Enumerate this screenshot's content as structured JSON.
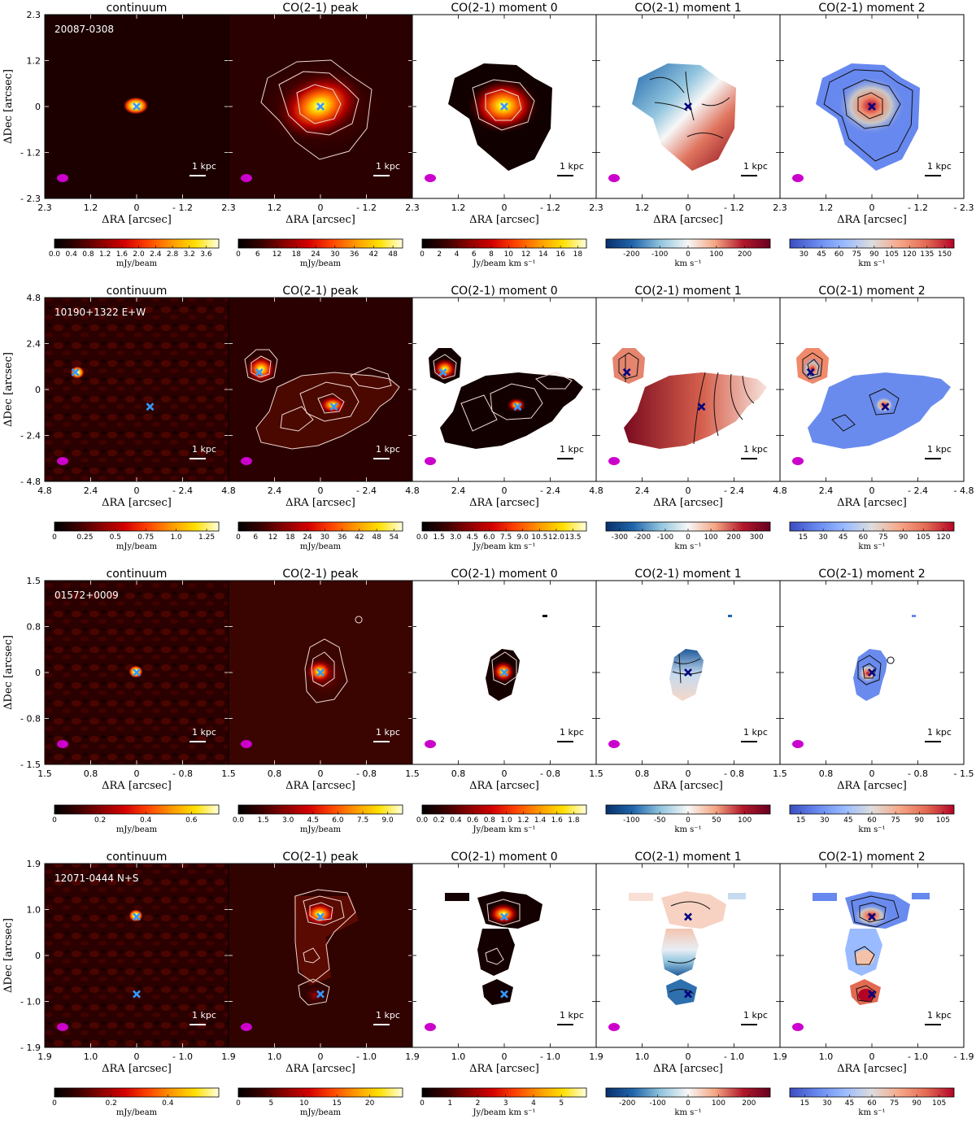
{
  "figure": {
    "panel_titles": [
      "continuum",
      "CO(2-1) peak",
      "CO(2-1) moment 0",
      "CO(2-1) moment 1",
      "CO(2-1) moment 2"
    ],
    "xlabel": "ΔRA [arcsec]",
    "ylabel": "ΔDec [arcsec]",
    "scalebar_label": "1 kpc"
  },
  "colors": {
    "hot": [
      "#000000",
      "#3a0000",
      "#8b0000",
      "#d40000",
      "#ff4500",
      "#ff9900",
      "#ffe000",
      "#ffffe0"
    ],
    "vel": [
      "#08306b",
      "#2166ac",
      "#92c5de",
      "#f7f7f7",
      "#f4a582",
      "#b2182b",
      "#67001f"
    ],
    "disp": [
      "#3b4cc0",
      "#6788ee",
      "#9abbff",
      "#dddddd",
      "#f7a889",
      "#e26952",
      "#b40426"
    ],
    "beam": "#cc00cc",
    "cross_light": "#3399ff",
    "cross_dark": "#000080"
  },
  "chart_data": [
    {
      "type": "heatmap",
      "galaxy": "20087-0308",
      "axis_ticks": [
        "2.3",
        "1.2",
        "0",
        "- 1.2",
        "- 2.3"
      ],
      "lim": [
        2.3,
        -2.3
      ],
      "colorbars": [
        {
          "label": "mJy/beam",
          "ticks": [
            "0.0",
            "0.4",
            "0.8",
            "1.2",
            "1.6",
            "2.0",
            "2.4",
            "2.8",
            "3.2",
            "3.6"
          ],
          "range": [
            0,
            3.9
          ]
        },
        {
          "label": "mJy/beam",
          "ticks": [
            "0",
            "6",
            "12",
            "18",
            "24",
            "30",
            "36",
            "42",
            "48"
          ],
          "range": [
            0,
            51
          ]
        },
        {
          "label": "Jy/beam km s⁻¹",
          "ticks": [
            "0",
            "2",
            "4",
            "6",
            "8",
            "10",
            "12",
            "14",
            "16",
            "18"
          ],
          "range": [
            0,
            19
          ]
        },
        {
          "label": "km s⁻¹",
          "ticks": [
            "-200",
            "-100",
            "0",
            "100",
            "200"
          ],
          "range": [
            -290,
            290
          ]
        },
        {
          "label": "km s⁻¹",
          "ticks": [
            "30",
            "45",
            "60",
            "75",
            "90",
            "105",
            "120",
            "135",
            "150"
          ],
          "range": [
            18,
            158
          ]
        }
      ],
      "sources": [
        {
          "ra": 0,
          "dec": 0
        }
      ],
      "extra_crosses": []
    },
    {
      "type": "heatmap",
      "galaxy": "10190+1322 E+W",
      "axis_ticks": [
        "4.8",
        "2.4",
        "0",
        "- 2.4",
        "- 4.8"
      ],
      "lim": [
        4.8,
        -4.8
      ],
      "colorbars": [
        {
          "label": "mJy/beam",
          "ticks": [
            "0",
            "0.25",
            "0.5",
            "0.75",
            "1.0",
            "1.25"
          ],
          "range": [
            0,
            1.35
          ]
        },
        {
          "label": "mJy/beam",
          "ticks": [
            "0",
            "6",
            "12",
            "18",
            "24",
            "30",
            "36",
            "42",
            "48",
            "54"
          ],
          "range": [
            0,
            57
          ]
        },
        {
          "label": "Jy/beam km s⁻¹",
          "ticks": [
            "0.0",
            "1.5",
            "3.0",
            "4.5",
            "6.0",
            "7.5",
            "9.0",
            "10.5",
            "12.0",
            "13.5"
          ],
          "range": [
            0,
            14.7
          ]
        },
        {
          "label": "km s⁻¹",
          "ticks": [
            "-300",
            "-200",
            "-100",
            "0",
            "100",
            "200",
            "300"
          ],
          "range": [
            -360,
            360
          ]
        },
        {
          "label": "km s⁻¹",
          "ticks": [
            "15",
            "30",
            "45",
            "60",
            "75",
            "90",
            "105",
            "120"
          ],
          "range": [
            5,
            128
          ]
        }
      ],
      "sources": [
        {
          "ra": 3.2,
          "dec": 0.9
        },
        {
          "ra": -0.7,
          "dec": -0.9
        }
      ],
      "extra_crosses": []
    },
    {
      "type": "heatmap",
      "galaxy": "01572+0009",
      "axis_ticks": [
        "1.5",
        "0.8",
        "0",
        "- 0.8",
        "- 1.5"
      ],
      "lim": [
        1.5,
        -1.5
      ],
      "colorbars": [
        {
          "label": "mJy/beam",
          "ticks": [
            "0",
            "0.2",
            "0.4",
            "0.6"
          ],
          "range": [
            0,
            0.72
          ]
        },
        {
          "label": "mJy/beam",
          "ticks": [
            "0.0",
            "1.5",
            "3.0",
            "4.5",
            "6.0",
            "7.5",
            "9.0"
          ],
          "range": [
            0,
            9.9
          ]
        },
        {
          "label": "Jy/beam km s⁻¹",
          "ticks": [
            "0.0",
            "0.2",
            "0.4",
            "0.6",
            "0.8",
            "1.0",
            "1.2",
            "1.4",
            "1.6",
            "1.8"
          ],
          "range": [
            0,
            1.95
          ]
        },
        {
          "label": "km s⁻¹",
          "ticks": [
            "-100",
            "-50",
            "0",
            "50",
            "100"
          ],
          "range": [
            -145,
            145
          ]
        },
        {
          "label": "km s⁻¹",
          "ticks": [
            "15",
            "30",
            "45",
            "60",
            "75",
            "90",
            "105"
          ],
          "range": [
            8,
            112
          ]
        }
      ],
      "sources": [
        {
          "ra": 0,
          "dec": 0
        }
      ],
      "extra_crosses": []
    },
    {
      "type": "heatmap",
      "galaxy": "12071-0444 N+S",
      "axis_ticks": [
        "1.9",
        "1.0",
        "0",
        "- 1.0",
        "- 1.9"
      ],
      "lim": [
        1.9,
        -1.9
      ],
      "colorbars": [
        {
          "label": "mJy/beam",
          "ticks": [
            "0",
            "0.2",
            "0.4"
          ],
          "range": [
            0,
            0.58
          ]
        },
        {
          "label": "mJy/beam",
          "ticks": [
            "0",
            "5",
            "10",
            "15",
            "20"
          ],
          "range": [
            0,
            25
          ]
        },
        {
          "label": "Jy/beam km s⁻¹",
          "ticks": [
            "0",
            "1",
            "2",
            "3",
            "4",
            "5"
          ],
          "range": [
            0,
            5.9
          ]
        },
        {
          "label": "km s⁻¹",
          "ticks": [
            "-200",
            "-100",
            "0",
            "100",
            "200"
          ],
          "range": [
            -270,
            270
          ]
        },
        {
          "label": "km s⁻¹",
          "ticks": [
            "15",
            "30",
            "45",
            "60",
            "75",
            "90",
            "105"
          ],
          "range": [
            5,
            115
          ]
        }
      ],
      "sources": [
        {
          "ra": 0,
          "dec": 0.8
        }
      ],
      "extra_crosses": [
        {
          "ra": 0,
          "dec": -0.8
        }
      ]
    }
  ]
}
